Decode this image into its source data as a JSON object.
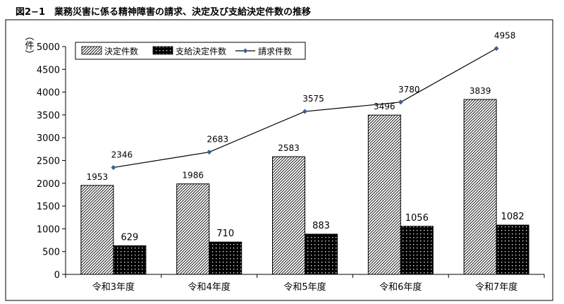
{
  "figure_title": "図2−1　業務災害に係る精神障害の請求、決定及び支給決定件数の推移",
  "chart_data": {
    "type": "bar",
    "title": "図2−1　業務災害に係る精神障害の請求、決定及び支給決定件数の推移",
    "xlabel": "",
    "ylabel": "（件）",
    "ylim": [
      0,
      5000
    ],
    "y_ticks": [
      0,
      500,
      1000,
      1500,
      2000,
      2500,
      3000,
      3500,
      4000,
      4500,
      5000
    ],
    "grid": false,
    "legend_position": "top-left",
    "categories": [
      "令和3年度",
      "令和4年度",
      "令和5年度",
      "令和6年度",
      "令和7年度"
    ],
    "series": [
      {
        "name": "決定件数",
        "type": "bar",
        "pattern": "diagonal-hatch",
        "values": [
          1953,
          1986,
          2583,
          3496,
          3839
        ]
      },
      {
        "name": "支給決定件数",
        "type": "bar",
        "pattern": "black-dots",
        "values": [
          629,
          710,
          883,
          1056,
          1082
        ]
      },
      {
        "name": "請求件数",
        "type": "line",
        "color": "#3a5f9c",
        "marker": "diamond",
        "values": [
          2346,
          2683,
          3575,
          3780,
          4958
        ]
      }
    ]
  }
}
